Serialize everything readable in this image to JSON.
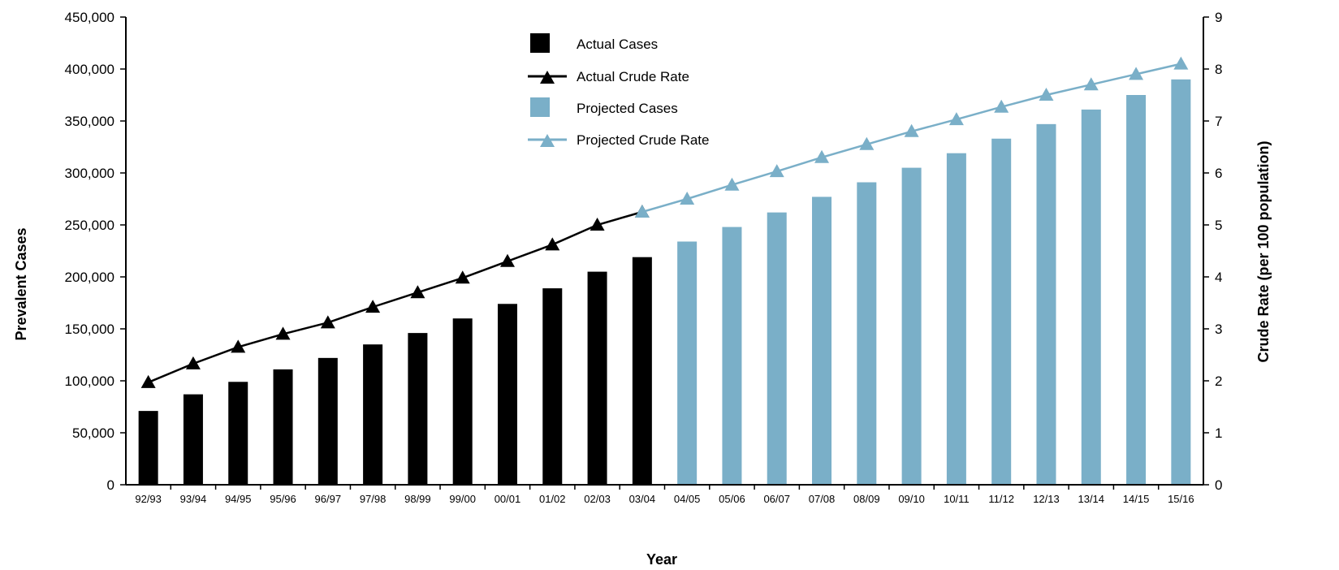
{
  "chart_data": {
    "type": "bar",
    "categories": [
      "92/93",
      "93/94",
      "94/95",
      "95/96",
      "96/97",
      "97/98",
      "98/99",
      "99/00",
      "00/01",
      "01/02",
      "02/03",
      "03/04",
      "04/05",
      "05/06",
      "06/07",
      "07/08",
      "08/09",
      "09/10",
      "10/11",
      "11/12",
      "12/13",
      "13/14",
      "14/15",
      "15/16"
    ],
    "xlabel": "Year",
    "ylabel_left": "Prevalent Cases",
    "ylabel_right": "Crude Rate (per 100 population)",
    "ylim_left": [
      0,
      450000
    ],
    "ylim_right": [
      0,
      9
    ],
    "yticks_left": [
      "0",
      "50,000",
      "100,000",
      "150,000",
      "200,000",
      "250,000",
      "300,000",
      "350,000",
      "400,000",
      "450,000"
    ],
    "yticks_right": [
      "0",
      "1",
      "2",
      "3",
      "4",
      "5",
      "6",
      "7",
      "8",
      "9"
    ],
    "grid": false,
    "legend_position": "top-center",
    "series": [
      {
        "name": "Actual Cases",
        "type": "bar",
        "axis": "left",
        "color": "#000000",
        "values": [
          71000,
          87000,
          99000,
          111000,
          122000,
          135000,
          146000,
          160000,
          174000,
          189000,
          205000,
          219000,
          null,
          null,
          null,
          null,
          null,
          null,
          null,
          null,
          null,
          null,
          null,
          null
        ]
      },
      {
        "name": "Actual Crude Rate",
        "type": "line",
        "axis": "right",
        "color": "#000000",
        "marker": "triangle",
        "values": [
          1.97,
          2.33,
          2.65,
          2.9,
          3.12,
          3.42,
          3.7,
          3.98,
          4.3,
          4.62,
          5.0,
          5.25,
          null,
          null,
          null,
          null,
          null,
          null,
          null,
          null,
          null,
          null,
          null,
          null
        ]
      },
      {
        "name": "Projected Cases",
        "type": "bar",
        "axis": "left",
        "color": "#7aafc8",
        "values": [
          null,
          null,
          null,
          null,
          null,
          null,
          null,
          null,
          null,
          null,
          null,
          null,
          234000,
          248000,
          262000,
          277000,
          291000,
          305000,
          319000,
          333000,
          347000,
          361000,
          375000,
          390000
        ]
      },
      {
        "name": "Projected Crude Rate",
        "type": "line",
        "axis": "right",
        "color": "#7aafc8",
        "marker": "triangle",
        "values": [
          null,
          null,
          null,
          null,
          null,
          null,
          null,
          null,
          null,
          null,
          null,
          5.25,
          5.5,
          5.77,
          6.03,
          6.3,
          6.55,
          6.8,
          7.03,
          7.27,
          7.5,
          7.7,
          7.9,
          8.1
        ]
      }
    ]
  }
}
